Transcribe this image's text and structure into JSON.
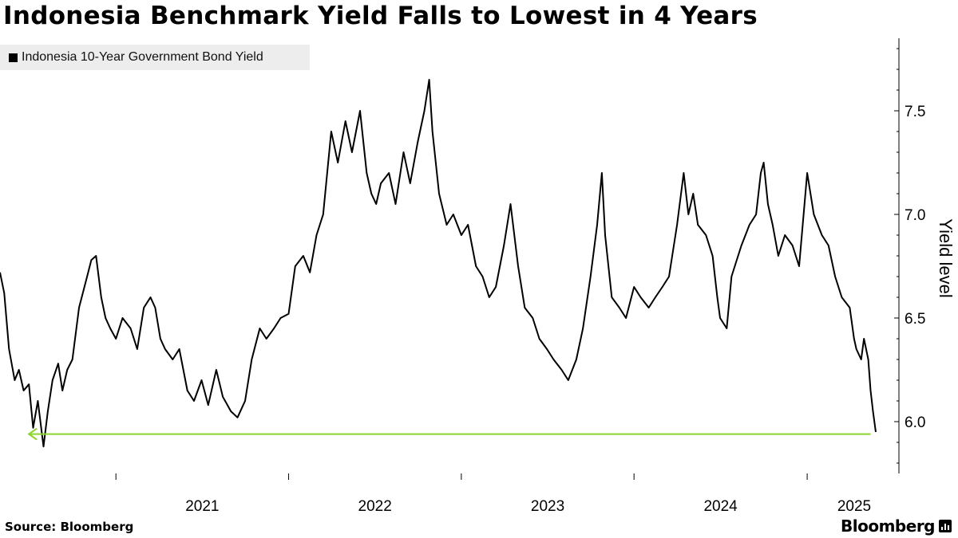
{
  "header": {
    "title": "Indonesia Benchmark Yield Falls to Lowest in 4 Years"
  },
  "legend": {
    "label": "Indonesia 10-Year Government Bond Yield"
  },
  "footer": {
    "source": "Source: Bloomberg",
    "brand": "Bloomberg"
  },
  "colors": {
    "line": "#000000",
    "arrow": "#8ad52a",
    "axis": "#000000",
    "legend_bg": "#ededed"
  },
  "icons": {
    "brand": "bloomberg-terminal-icon"
  },
  "chart_data": {
    "type": "line",
    "title": "Indonesia Benchmark Yield Falls to Lowest in 4 Years",
    "xlabel": "",
    "ylabel": "Yield level",
    "ylim": [
      5.75,
      7.85
    ],
    "xlim": [
      "2020-05-01",
      "2025-05-31"
    ],
    "y_axis_position": "right",
    "grid": false,
    "legend_position": "top-left",
    "yticks": [
      6.0,
      6.5,
      7.0,
      7.5
    ],
    "ytick_labels": [
      "6.0",
      "6.5",
      "7.0",
      "7.5"
    ],
    "xticks": [
      "2021-01-01",
      "2022-01-01",
      "2023-01-01",
      "2024-01-01",
      "2025-01-01"
    ],
    "xtick_labels": [
      "2021",
      "2022",
      "2023",
      "2024",
      "2025"
    ],
    "series": [
      {
        "name": "Indonesia 10-Year Government Bond Yield",
        "x": [
          "2020-05-01",
          "2020-05-10",
          "2020-05-20",
          "2020-06-01",
          "2020-06-10",
          "2020-06-20",
          "2020-07-01",
          "2020-07-10",
          "2020-07-20",
          "2020-08-01",
          "2020-08-10",
          "2020-08-20",
          "2020-09-01",
          "2020-09-10",
          "2020-09-20",
          "2020-10-01",
          "2020-10-15",
          "2020-11-01",
          "2020-11-10",
          "2020-11-20",
          "2020-12-01",
          "2020-12-10",
          "2020-12-20",
          "2021-01-01",
          "2021-01-15",
          "2021-02-01",
          "2021-02-15",
          "2021-03-01",
          "2021-03-15",
          "2021-03-25",
          "2021-04-05",
          "2021-04-15",
          "2021-05-01",
          "2021-05-15",
          "2021-06-01",
          "2021-06-15",
          "2021-07-01",
          "2021-07-15",
          "2021-08-01",
          "2021-08-15",
          "2021-09-01",
          "2021-09-15",
          "2021-10-01",
          "2021-10-15",
          "2021-11-01",
          "2021-11-15",
          "2021-12-01",
          "2021-12-15",
          "2022-01-01",
          "2022-01-15",
          "2022-02-01",
          "2022-02-15",
          "2022-03-01",
          "2022-03-15",
          "2022-04-01",
          "2022-04-15",
          "2022-05-01",
          "2022-05-15",
          "2022-06-01",
          "2022-06-15",
          "2022-06-25",
          "2022-07-05",
          "2022-07-15",
          "2022-08-01",
          "2022-08-15",
          "2022-09-01",
          "2022-09-15",
          "2022-10-01",
          "2022-10-15",
          "2022-10-25",
          "2022-11-01",
          "2022-11-15",
          "2022-12-01",
          "2022-12-15",
          "2023-01-01",
          "2023-01-15",
          "2023-02-01",
          "2023-02-15",
          "2023-03-01",
          "2023-03-15",
          "2023-04-01",
          "2023-04-15",
          "2023-05-01",
          "2023-05-15",
          "2023-06-01",
          "2023-06-15",
          "2023-07-01",
          "2023-07-15",
          "2023-08-01",
          "2023-08-15",
          "2023-09-01",
          "2023-09-15",
          "2023-10-01",
          "2023-10-15",
          "2023-10-25",
          "2023-11-01",
          "2023-11-15",
          "2023-12-01",
          "2023-12-15",
          "2024-01-01",
          "2024-01-15",
          "2024-02-01",
          "2024-02-15",
          "2024-03-01",
          "2024-03-15",
          "2024-04-01",
          "2024-04-15",
          "2024-04-25",
          "2024-05-05",
          "2024-05-15",
          "2024-06-01",
          "2024-06-15",
          "2024-06-25",
          "2024-07-01",
          "2024-07-15",
          "2024-07-25",
          "2024-08-01",
          "2024-08-15",
          "2024-09-01",
          "2024-09-15",
          "2024-09-25",
          "2024-10-01",
          "2024-10-10",
          "2024-10-20",
          "2024-11-01",
          "2024-11-15",
          "2024-12-01",
          "2024-12-15",
          "2025-01-01",
          "2025-01-15",
          "2025-02-01",
          "2025-02-15",
          "2025-03-01",
          "2025-03-15",
          "2025-04-01",
          "2025-04-10",
          "2025-04-15",
          "2025-04-25",
          "2025-05-01",
          "2025-05-10",
          "2025-05-15",
          "2025-05-20",
          "2025-05-26"
        ],
        "values": [
          6.72,
          6.62,
          6.35,
          6.2,
          6.25,
          6.15,
          6.18,
          5.97,
          6.1,
          5.88,
          6.05,
          6.2,
          6.28,
          6.15,
          6.25,
          6.3,
          6.55,
          6.7,
          6.78,
          6.8,
          6.6,
          6.5,
          6.45,
          6.4,
          6.5,
          6.45,
          6.35,
          6.55,
          6.6,
          6.55,
          6.4,
          6.35,
          6.3,
          6.35,
          6.15,
          6.1,
          6.2,
          6.08,
          6.25,
          6.12,
          6.05,
          6.02,
          6.1,
          6.3,
          6.45,
          6.4,
          6.45,
          6.5,
          6.52,
          6.75,
          6.8,
          6.72,
          6.9,
          7.0,
          7.4,
          7.25,
          7.45,
          7.3,
          7.5,
          7.2,
          7.1,
          7.05,
          7.15,
          7.2,
          7.05,
          7.3,
          7.15,
          7.35,
          7.5,
          7.65,
          7.4,
          7.1,
          6.95,
          7.0,
          6.9,
          6.95,
          6.75,
          6.7,
          6.6,
          6.65,
          6.85,
          7.05,
          6.75,
          6.55,
          6.5,
          6.4,
          6.35,
          6.3,
          6.25,
          6.2,
          6.3,
          6.45,
          6.7,
          6.95,
          7.2,
          6.9,
          6.6,
          6.55,
          6.5,
          6.65,
          6.6,
          6.55,
          6.6,
          6.65,
          6.7,
          6.95,
          7.2,
          7.0,
          7.1,
          6.95,
          6.9,
          6.8,
          6.6,
          6.5,
          6.45,
          6.7,
          6.75,
          6.85,
          6.95,
          7.0,
          7.2,
          7.25,
          7.05,
          6.95,
          6.8,
          6.9,
          6.85,
          6.75,
          7.2,
          7.0,
          6.9,
          6.85,
          6.7,
          6.6,
          6.55,
          6.4,
          6.35,
          6.3,
          6.4,
          6.3,
          6.15,
          6.05,
          5.95
        ]
      }
    ],
    "annotations": [
      {
        "type": "horizontal-arrow",
        "y": 5.94,
        "x_start": "2025-05-15",
        "x_end": "2020-07-01",
        "color": "#8ad52a"
      }
    ]
  }
}
